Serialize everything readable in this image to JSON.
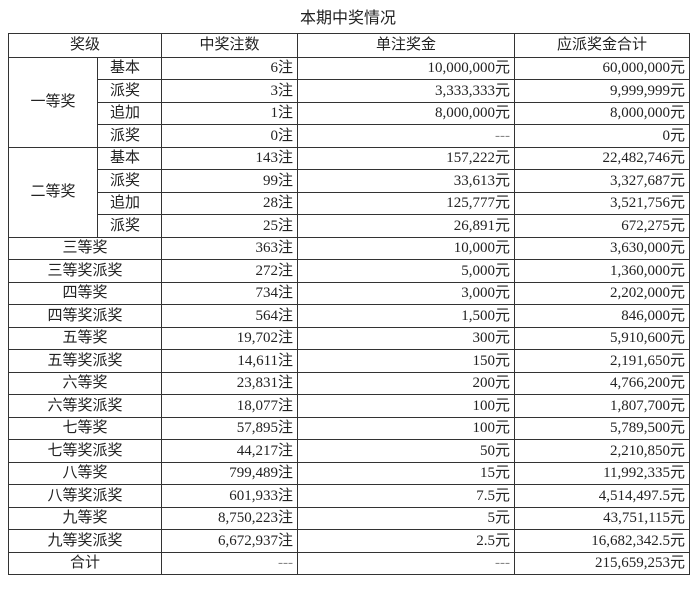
{
  "title": "本期中奖情况",
  "headers": [
    "奖级",
    "中奖注数",
    "单注奖金",
    "应派奖金合计"
  ],
  "groups": [
    {
      "name": "一等奖",
      "rows": [
        {
          "sub": "基本",
          "count": "6注",
          "unit": "10,000,000元",
          "total": "60,000,000元"
        },
        {
          "sub": "派奖",
          "count": "3注",
          "unit": "3,333,333元",
          "total": "9,999,999元"
        },
        {
          "sub": "追加",
          "count": "1注",
          "unit": "8,000,000元",
          "total": "8,000,000元"
        },
        {
          "sub": "派奖",
          "count": "0注",
          "unit": "---",
          "total": "0元"
        }
      ]
    },
    {
      "name": "二等奖",
      "rows": [
        {
          "sub": "基本",
          "count": "143注",
          "unit": "157,222元",
          "total": "22,482,746元"
        },
        {
          "sub": "派奖",
          "count": "99注",
          "unit": "33,613元",
          "total": "3,327,687元"
        },
        {
          "sub": "追加",
          "count": "28注",
          "unit": "125,777元",
          "total": "3,521,756元"
        },
        {
          "sub": "派奖",
          "count": "25注",
          "unit": "26,891元",
          "total": "672,275元"
        }
      ]
    }
  ],
  "rows": [
    {
      "level": "三等奖",
      "count": "363注",
      "unit": "10,000元",
      "total": "3,630,000元"
    },
    {
      "level": "三等奖派奖",
      "count": "272注",
      "unit": "5,000元",
      "total": "1,360,000元"
    },
    {
      "level": "四等奖",
      "count": "734注",
      "unit": "3,000元",
      "total": "2,202,000元"
    },
    {
      "level": "四等奖派奖",
      "count": "564注",
      "unit": "1,500元",
      "total": "846,000元"
    },
    {
      "level": "五等奖",
      "count": "19,702注",
      "unit": "300元",
      "total": "5,910,600元"
    },
    {
      "level": "五等奖派奖",
      "count": "14,611注",
      "unit": "150元",
      "total": "2,191,650元"
    },
    {
      "level": "六等奖",
      "count": "23,831注",
      "unit": "200元",
      "total": "4,766,200元"
    },
    {
      "level": "六等奖派奖",
      "count": "18,077注",
      "unit": "100元",
      "total": "1,807,700元"
    },
    {
      "level": "七等奖",
      "count": "57,895注",
      "unit": "100元",
      "total": "5,789,500元"
    },
    {
      "level": "七等奖派奖",
      "count": "44,217注",
      "unit": "50元",
      "total": "2,210,850元"
    },
    {
      "level": "八等奖",
      "count": "799,489注",
      "unit": "15元",
      "total": "11,992,335元"
    },
    {
      "level": "八等奖派奖",
      "count": "601,933注",
      "unit": "7.5元",
      "total": "4,514,497.5元"
    },
    {
      "level": "九等奖",
      "count": "8,750,223注",
      "unit": "5元",
      "total": "43,751,115元"
    },
    {
      "level": "九等奖派奖",
      "count": "6,672,937注",
      "unit": "2.5元",
      "total": "16,682,342.5元"
    },
    {
      "level": "合计",
      "count": "---",
      "unit": "---",
      "total": "215,659,253元"
    }
  ]
}
